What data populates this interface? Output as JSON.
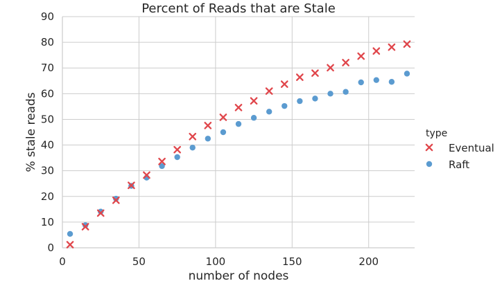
{
  "chart_data": {
    "type": "scatter",
    "title": "Percent of Reads that are Stale",
    "xlabel": "number of nodes",
    "ylabel": "% stale reads",
    "xlim": [
      0,
      230
    ],
    "ylim": [
      0,
      90
    ],
    "xticks": [
      "0",
      "50",
      "100",
      "150",
      "200"
    ],
    "yticks": [
      "0",
      "10",
      "20",
      "30",
      "40",
      "50",
      "60",
      "70",
      "80",
      "90"
    ],
    "grid": true,
    "legend": {
      "title": "type",
      "placement": "right"
    },
    "series": [
      {
        "name": "Eventual",
        "marker": "x",
        "color": "#e0464b",
        "x": [
          5,
          15,
          25,
          35,
          45,
          55,
          65,
          75,
          85,
          95,
          105,
          115,
          125,
          135,
          145,
          155,
          165,
          175,
          185,
          195,
          205,
          215,
          225
        ],
        "y": [
          1.2,
          8.2,
          13.5,
          18.5,
          24.3,
          28.3,
          33.6,
          38.2,
          43.3,
          47.6,
          50.8,
          54.6,
          57.2,
          61.0,
          63.7,
          66.4,
          68.0,
          70.1,
          72.1,
          74.6,
          76.6,
          78.1,
          79.3
        ]
      },
      {
        "name": "Raft",
        "marker": "o",
        "color": "#5b9bd0",
        "x": [
          5,
          15,
          25,
          35,
          45,
          55,
          65,
          75,
          85,
          95,
          105,
          115,
          125,
          135,
          145,
          155,
          165,
          175,
          185,
          195,
          205,
          215,
          225
        ],
        "y": [
          5.4,
          8.8,
          14.1,
          19.1,
          24.1,
          27.3,
          31.8,
          35.3,
          39.0,
          42.5,
          45.0,
          48.2,
          50.6,
          53.0,
          55.2,
          57.1,
          58.1,
          60.0,
          60.7,
          64.4,
          65.3,
          64.6,
          67.8
        ]
      }
    ]
  }
}
